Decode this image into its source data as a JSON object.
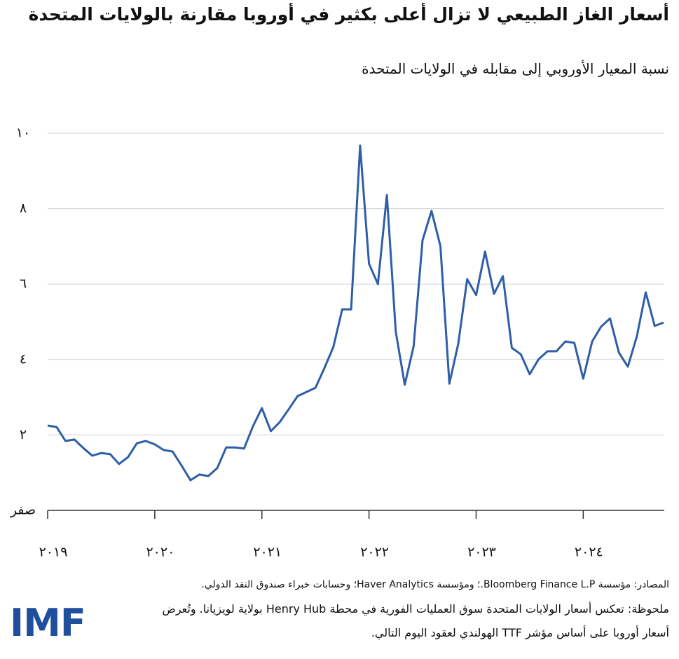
{
  "chart_data": {
    "type": "line",
    "title": "أسعار الغاز الطبيعي لا تزال أعلى بكثير في أوروبا مقارنة بالولايات المتحدة",
    "subtitle": "نسبة المعيار الأوروبي إلى مقابله في الولايات المتحدة",
    "categories": [
      "٢٠١٩",
      null,
      null,
      null,
      null,
      null,
      null,
      null,
      null,
      null,
      null,
      null,
      "٢٠٢٠",
      null,
      null,
      null,
      null,
      null,
      null,
      null,
      null,
      null,
      null,
      null,
      "٢٠٢١",
      null,
      null,
      null,
      null,
      null,
      null,
      null,
      null,
      null,
      null,
      null,
      "٢٠٢٢",
      null,
      null,
      null,
      null,
      null,
      null,
      null,
      null,
      null,
      null,
      null,
      "٢٠٢٣",
      null,
      null,
      null,
      null,
      null,
      null,
      null,
      null,
      null,
      null,
      null,
      "٢٠٢٤",
      null,
      null,
      null,
      null,
      null,
      null,
      null,
      null,
      null
    ],
    "series": [
      {
        "color": "#2e5ea8",
        "values": [
          2.25,
          2.21,
          1.84,
          1.88,
          1.65,
          1.45,
          1.52,
          1.49,
          1.23,
          1.41,
          1.78,
          1.84,
          1.75,
          1.6,
          1.56,
          1.19,
          0.8,
          0.95,
          0.91,
          1.12,
          1.67,
          1.67,
          1.64,
          2.23,
          2.71,
          2.1,
          2.34,
          2.68,
          3.03,
          3.14,
          3.25,
          3.77,
          4.33,
          5.33,
          5.33,
          9.67,
          6.54,
          6.0,
          8.36,
          4.74,
          3.33,
          4.35,
          7.16,
          7.94,
          7.01,
          3.36,
          4.42,
          6.13,
          5.71,
          6.86,
          5.74,
          6.21,
          4.31,
          4.14,
          3.61,
          4.01,
          4.22,
          4.22,
          4.48,
          4.44,
          3.49,
          4.48,
          4.87,
          5.09,
          4.18,
          3.81,
          4.61,
          5.78,
          4.89,
          4.98
        ]
      }
    ],
    "ylim": [
      0,
      10
    ],
    "yticks": [
      {
        "value": 0,
        "label": "صفر"
      },
      {
        "value": 2,
        "label": "٢"
      },
      {
        "value": 4,
        "label": "٤"
      },
      {
        "value": 6,
        "label": "٦"
      },
      {
        "value": 8,
        "label": "٨"
      },
      {
        "value": 10,
        "label": "١٠"
      }
    ],
    "grid": true
  },
  "footer": {
    "sources": "المصادر: مؤسسة Bloomberg Finance L.P.؛ ومؤسسة Haver Analytics؛ وحسابات خبراء صندوق النقد الدولي.",
    "note": [
      "ملحوظة: تعكس أسعار الولايات المتحدة سوق العمليات الفورية في محطة Henry Hub بولاية لويزيانا. وتُعرض",
      "أسعار أوروبا على أساس مؤشر TTF الهولندي لعقود اليوم التالي."
    ],
    "logo": "IMF"
  }
}
